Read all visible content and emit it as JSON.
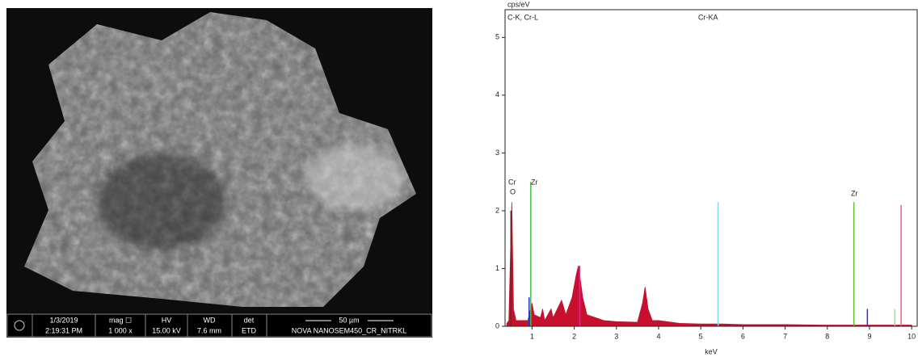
{
  "sem_image": {
    "info_bar": {
      "date": "1/3/2019",
      "time": "2:19:31 PM",
      "mag_label": "mag ☐",
      "mag_value": "1 000 x",
      "hv_label": "HV",
      "hv_value": "15.00 kV",
      "wd_label": "WD",
      "wd_value": "7.6 mm",
      "det_label": "det",
      "det_value": "ETD",
      "scale_label": "50 µm",
      "instrument": "NOVA NANOSEM450_CR_NITRKL"
    }
  },
  "chart_data": {
    "type": "area",
    "y_label": "cps/eV",
    "x_label": "keV",
    "x": [
      0.4,
      0.45,
      0.52,
      0.56,
      0.62,
      0.9,
      1.0,
      1.05,
      1.2,
      1.25,
      1.3,
      1.45,
      1.5,
      1.7,
      1.8,
      1.95,
      2.05,
      2.1,
      2.2,
      2.3,
      2.5,
      2.7,
      3.0,
      3.5,
      3.62,
      3.68,
      3.75,
      3.85,
      4.0,
      4.5,
      5.0,
      5.5,
      6.0,
      7.0,
      8.0,
      9.0,
      10.0
    ],
    "series": [
      {
        "name": "spectrum",
        "color": "#c8102e",
        "values": [
          0.05,
          0.1,
          2.15,
          0.3,
          0.1,
          0.1,
          0.4,
          0.2,
          0.15,
          0.3,
          0.1,
          0.3,
          0.15,
          0.45,
          0.2,
          0.5,
          0.9,
          1.05,
          0.5,
          0.2,
          0.15,
          0.1,
          0.08,
          0.07,
          0.4,
          0.68,
          0.3,
          0.1,
          0.1,
          0.05,
          0.04,
          0.04,
          0.03,
          0.03,
          0.02,
          0.02,
          0.02
        ]
      }
    ],
    "peak_lines": [
      {
        "x": 0.5,
        "height": 2.0,
        "color": "#7a1f1f"
      },
      {
        "x": 0.93,
        "height": 0.5,
        "color": "#2a2ad0"
      },
      {
        "x": 0.97,
        "height": 2.5,
        "color": "#3cc43c"
      },
      {
        "x": 2.13,
        "height": 1.05,
        "color": "#e020c0"
      },
      {
        "x": 5.41,
        "height": 2.15,
        "color": "#80d8e8"
      },
      {
        "x": 8.63,
        "height": 2.15,
        "color": "#60c030"
      },
      {
        "x": 8.95,
        "height": 0.3,
        "color": "#3030c0"
      },
      {
        "x": 9.6,
        "height": 0.3,
        "color": "#a0e080"
      },
      {
        "x": 9.75,
        "height": 2.1,
        "color": "#f06080"
      }
    ],
    "annotations": [
      "C-K, Cr-L",
      "Cr-KA",
      "Cr",
      "O",
      "Zr",
      "Zr"
    ],
    "xlim": [
      0.36,
      10.15
    ],
    "ylim": [
      0,
      5.48
    ],
    "xticks": [
      1,
      2,
      3,
      4,
      5,
      6,
      7,
      8,
      9,
      10
    ],
    "yticks": [
      0,
      1,
      2,
      3,
      4,
      5
    ]
  }
}
